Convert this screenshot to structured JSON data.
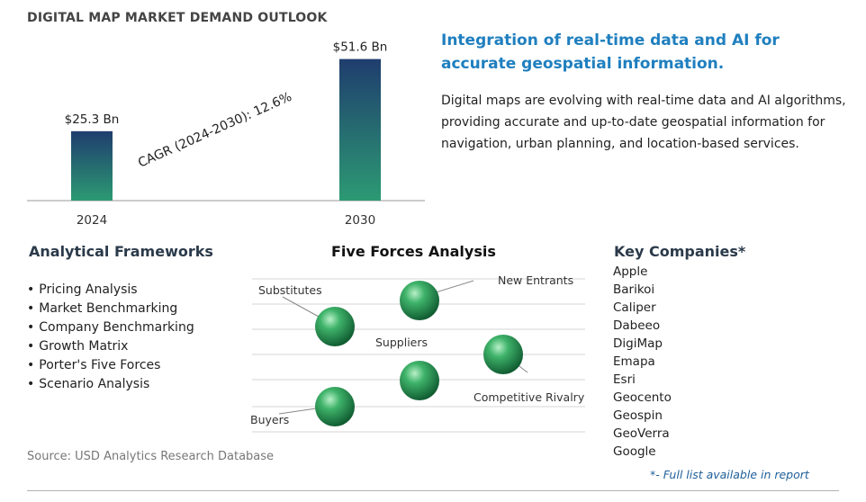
{
  "header": {
    "title": "DIGITAL MAP MARKET DEMAND OUTLOOK"
  },
  "chart_data": {
    "type": "bar",
    "categories": [
      "2024",
      "2030"
    ],
    "values": [
      25.3,
      51.6
    ],
    "value_labels": [
      "$25.3 Bn",
      "$51.6 Bn"
    ],
    "annotation": {
      "label": "CAGR (2024-2030):",
      "value": "12.6%"
    },
    "title": "",
    "xlabel": "",
    "ylabel": "",
    "ylim": [
      0,
      60
    ],
    "grid": false,
    "legend": "none",
    "colors": {
      "bar_top": "#1f3d6e",
      "bar_bottom": "#2c9a73",
      "axis": "#9a9a9a"
    }
  },
  "insight": {
    "headline": "Integration of real-time data and AI for accurate geospatial information.",
    "body": "Digital maps are evolving with real-time data and AI algorithms, providing accurate and up-to-date geospatial information for navigation, urban planning, and location-based services."
  },
  "frameworks": {
    "title": "Analytical Frameworks",
    "items": [
      "Pricing Analysis",
      "Market Benchmarking",
      "Company Benchmarking",
      "Growth Matrix",
      "Porter's Five Forces",
      "Scenario Analysis"
    ]
  },
  "five_forces": {
    "title": "Five Forces Analysis",
    "labels": {
      "substitutes": "Substitutes",
      "new_entrants": "New Entrants",
      "suppliers": "Suppliers",
      "competitive_rivalry": "Competitive Rivalry",
      "buyers": "Buyers"
    },
    "sphere_color": "#2e9a5a"
  },
  "companies": {
    "title": "Key Companies*",
    "items": [
      "Apple",
      "Barikoi",
      "Caliper",
      "Dabeeo",
      "DigiMap",
      "Emapa",
      "Esri",
      "Geocento",
      "Geospin",
      "GeoVerra",
      "Google"
    ],
    "footnote": "*- Full list available in report"
  },
  "source": "Source: USD Analytics Research Database"
}
